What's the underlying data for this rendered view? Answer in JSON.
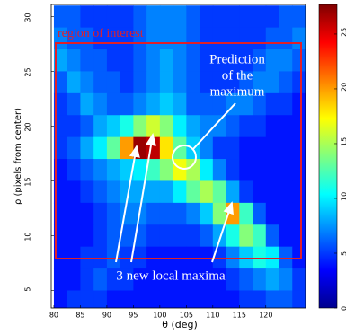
{
  "chart_data": {
    "type": "heatmap",
    "xlabel": "θ (deg)",
    "ylabel": "ρ (pixels from center)",
    "x": [
      81.25,
      83.75,
      86.25,
      88.75,
      91.25,
      93.75,
      96.25,
      98.75,
      101.25,
      103.75,
      106.25,
      108.75,
      111.25,
      113.75,
      116.25,
      118.75,
      121.25,
      123.75,
      126.25
    ],
    "y": [
      30,
      28,
      26,
      24,
      22,
      20,
      18,
      16,
      14,
      12,
      10,
      8,
      6,
      4
    ],
    "values": [
      [
        6,
        6,
        5,
        5,
        5,
        5,
        6,
        7,
        7,
        7,
        6,
        5,
        5,
        5,
        5,
        5,
        5,
        6,
        6
      ],
      [
        7,
        6,
        6,
        5,
        5,
        5,
        6,
        7,
        7,
        7,
        6,
        5,
        5,
        5,
        5,
        5,
        6,
        6,
        7
      ],
      [
        8,
        7,
        6,
        6,
        5,
        5,
        6,
        7,
        8,
        7,
        6,
        5,
        5,
        5,
        5,
        6,
        7,
        7,
        6
      ],
      [
        6,
        8,
        7,
        6,
        6,
        5,
        6,
        7,
        8,
        7,
        6,
        5,
        5,
        5,
        6,
        7,
        7,
        6,
        5
      ],
      [
        5,
        6,
        8,
        7,
        6,
        6,
        7,
        8,
        9,
        8,
        6,
        6,
        6,
        7,
        7,
        6,
        5,
        5,
        4
      ],
      [
        5,
        5,
        6,
        8,
        9,
        11,
        14,
        16,
        14,
        10,
        8,
        7,
        7,
        6,
        5,
        5,
        4,
        4,
        4
      ],
      [
        5,
        6,
        8,
        10,
        13,
        20,
        27,
        26,
        18,
        13,
        9,
        7,
        5,
        5,
        4,
        4,
        4,
        4,
        4
      ],
      [
        4,
        5,
        6,
        7,
        8,
        9,
        10,
        12,
        14,
        17,
        15,
        10,
        7,
        5,
        4,
        4,
        4,
        4,
        4
      ],
      [
        4,
        4,
        5,
        6,
        7,
        8,
        8,
        8,
        8,
        10,
        13,
        15,
        13,
        8,
        5,
        4,
        4,
        4,
        4
      ],
      [
        4,
        4,
        4,
        5,
        6,
        7,
        7,
        6,
        6,
        6,
        7,
        9,
        14,
        20,
        12,
        6,
        4,
        4,
        4
      ],
      [
        4,
        4,
        4,
        5,
        6,
        6,
        6,
        5,
        5,
        5,
        5,
        6,
        8,
        11,
        14,
        12,
        6,
        4,
        4
      ],
      [
        4,
        4,
        5,
        5,
        6,
        5,
        5,
        4,
        4,
        4,
        4,
        4,
        5,
        7,
        9,
        11,
        10,
        6,
        4
      ],
      [
        4,
        4,
        5,
        6,
        5,
        5,
        4,
        4,
        4,
        4,
        4,
        4,
        4,
        5,
        6,
        7,
        8,
        7,
        5
      ],
      [
        4,
        5,
        5,
        5,
        4,
        4,
        4,
        4,
        4,
        4,
        4,
        4,
        4,
        4,
        5,
        5,
        6,
        6,
        5
      ]
    ],
    "colormap": "jet",
    "clim": [
      0,
      27.7
    ],
    "colorbar_ticks": [
      0,
      5,
      10,
      15,
      20,
      25
    ],
    "xlim": [
      79.5,
      127.5
    ],
    "ylim": [
      3.4,
      31.1
    ],
    "xticks": [
      80,
      85,
      90,
      95,
      100,
      105,
      110,
      115,
      120
    ],
    "yticks": [
      5,
      10,
      15,
      20,
      25,
      30
    ],
    "annotations": {
      "region": "region of interest",
      "prediction": [
        "Prediction",
        "of the",
        "maximum"
      ],
      "maxima": "3 new local maxima"
    }
  }
}
